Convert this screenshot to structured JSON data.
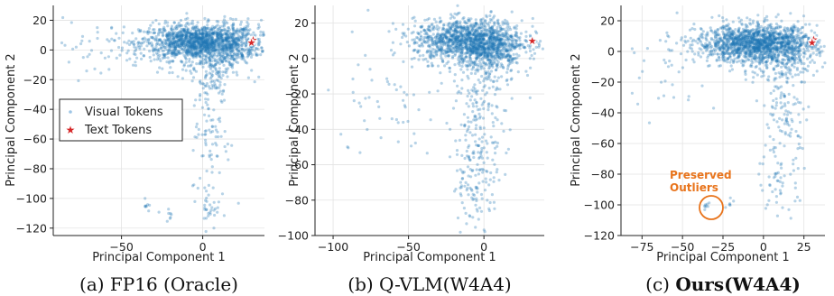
{
  "chart_data": [
    {
      "type": "scatter",
      "xlabel": "Principal Component 1",
      "ylabel": "Principal Component 2",
      "xlim": [
        -92,
        38
      ],
      "ylim": [
        -125,
        30
      ],
      "xticks": [
        -50,
        0
      ],
      "yticks": [
        20,
        0,
        -20,
        -40,
        -60,
        -80,
        -100,
        -120
      ],
      "grid": true,
      "legend": {
        "placement": "center-left",
        "entries": [
          "Visual Tokens",
          "Text Tokens"
        ]
      },
      "series": [
        {
          "name": "Visual Tokens",
          "color": "#1f77b4",
          "clusters": [
            {
              "center": [
                -2,
                5
              ],
              "spread": [
                18,
                6
              ],
              "count": 1400
            },
            {
              "center": [
                12,
                0
              ],
              "spread": [
                12,
                10
              ],
              "count": 300
            },
            {
              "center": [
                5,
                -20
              ],
              "spread": [
                6,
                8
              ],
              "count": 60
            },
            {
              "center": [
                5,
                -60
              ],
              "spread": [
                6,
                20
              ],
              "count": 80
            },
            {
              "center": [
                5,
                -105
              ],
              "spread": [
                3,
                8
              ],
              "count": 30
            },
            {
              "center": [
                -35,
                -105
              ],
              "spread": [
                1,
                2
              ],
              "count": 8
            },
            {
              "center": [
                -20,
                -110
              ],
              "spread": [
                3,
                2
              ],
              "count": 8
            },
            {
              "center": [
                -65,
                0
              ],
              "spread": [
                15,
                10
              ],
              "count": 40
            }
          ]
        },
        {
          "name": "Text Tokens",
          "color": "#d62728",
          "points": [
            [
              31,
              7
            ],
            [
              30,
              5
            ]
          ]
        }
      ],
      "caption_label": "(a) FP16 (Oracle)"
    },
    {
      "type": "scatter",
      "xlabel": "Principal Component 1",
      "ylabel": "Principal Component 2",
      "xlim": [
        -112,
        40
      ],
      "ylim": [
        -100,
        30
      ],
      "xticks": [
        -100,
        -50,
        0
      ],
      "yticks": [
        20,
        0,
        -20,
        -40,
        -60,
        -80,
        -100
      ],
      "grid": true,
      "series": [
        {
          "name": "Visual Tokens",
          "color": "#1f77b4",
          "clusters": [
            {
              "center": [
                -10,
                10
              ],
              "spread": [
                18,
                6
              ],
              "count": 1300
            },
            {
              "center": [
                5,
                2
              ],
              "spread": [
                10,
                8
              ],
              "count": 300
            },
            {
              "center": [
                -2,
                -30
              ],
              "spread": [
                8,
                15
              ],
              "count": 150
            },
            {
              "center": [
                -5,
                -70
              ],
              "spread": [
                8,
                12
              ],
              "count": 120
            },
            {
              "center": [
                -60,
                -20
              ],
              "spread": [
                20,
                20
              ],
              "count": 60
            }
          ]
        },
        {
          "name": "Text Tokens",
          "color": "#d62728",
          "points": [
            [
              32,
              10
            ]
          ]
        }
      ],
      "caption_label": "(b) Q-VLM(W4A4)"
    },
    {
      "type": "scatter",
      "xlabel": "Principal Component 1",
      "ylabel": "Principal Component 2",
      "xlim": [
        -88,
        38
      ],
      "ylim": [
        -120,
        30
      ],
      "xticks": [
        -75,
        -50,
        -25,
        0,
        25
      ],
      "yticks": [
        20,
        0,
        -20,
        -40,
        -60,
        -80,
        -100,
        -120
      ],
      "grid": true,
      "annotations": [
        {
          "text": "Preserved",
          "at": [
            -37,
            -73
          ]
        },
        {
          "text": "Outliers",
          "at": [
            -37,
            -81
          ]
        }
      ],
      "series": [
        {
          "name": "Visual Tokens",
          "color": "#1f77b4",
          "clusters": [
            {
              "center": [
                -5,
                5
              ],
              "spread": [
                18,
                6
              ],
              "count": 1400
            },
            {
              "center": [
                10,
                0
              ],
              "spread": [
                12,
                10
              ],
              "count": 300
            },
            {
              "center": [
                15,
                -40
              ],
              "spread": [
                6,
                15
              ],
              "count": 80
            },
            {
              "center": [
                10,
                -80
              ],
              "spread": [
                6,
                15
              ],
              "count": 70
            },
            {
              "center": [
                -35,
                -100
              ],
              "spread": [
                1.5,
                1.5
              ],
              "count": 8
            },
            {
              "center": [
                -20,
                -100
              ],
              "spread": [
                2,
                2
              ],
              "count": 6
            },
            {
              "center": [
                -60,
                -10
              ],
              "spread": [
                15,
                15
              ],
              "count": 40
            }
          ]
        },
        {
          "name": "Text Tokens",
          "color": "#d62728",
          "points": [
            [
              31,
              8
            ],
            [
              30,
              6
            ]
          ]
        }
      ],
      "caption_label": "(c) ",
      "caption_bold": "Ours(W4A4)"
    }
  ]
}
